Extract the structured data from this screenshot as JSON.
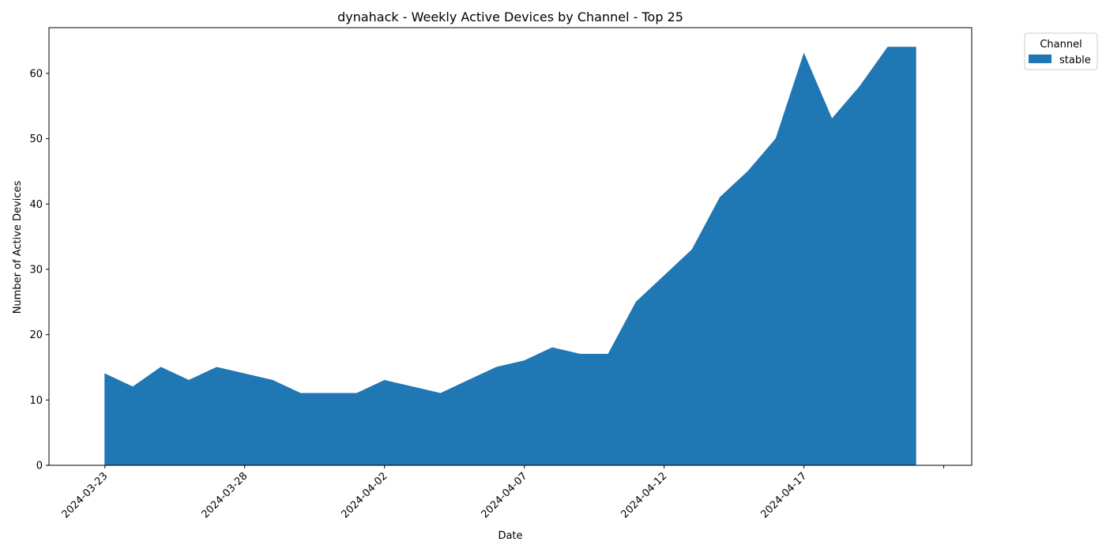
{
  "chart_data": {
    "type": "area",
    "title": "dynahack - Weekly Active Devices by Channel - Top 25",
    "xlabel": "Date",
    "ylabel": "Number of Active Devices",
    "x": [
      "2024-03-23",
      "2024-03-24",
      "2024-03-25",
      "2024-03-26",
      "2024-03-27",
      "2024-03-28",
      "2024-03-29",
      "2024-03-30",
      "2024-03-31",
      "2024-04-01",
      "2024-04-02",
      "2024-04-03",
      "2024-04-04",
      "2024-04-05",
      "2024-04-06",
      "2024-04-07",
      "2024-04-08",
      "2024-04-09",
      "2024-04-10",
      "2024-04-11",
      "2024-04-12",
      "2024-04-13",
      "2024-04-14",
      "2024-04-15",
      "2024-04-16",
      "2024-04-17",
      "2024-04-18",
      "2024-04-19",
      "2024-04-20",
      "2024-04-21"
    ],
    "series": [
      {
        "name": "stable",
        "color": "#1f77b4",
        "values": [
          14,
          12,
          15,
          13,
          15,
          14,
          13,
          11,
          11,
          11,
          13,
          12,
          11,
          13,
          15,
          16,
          18,
          17,
          17,
          25,
          29,
          33,
          41,
          45,
          50,
          63,
          53,
          58,
          64,
          64
        ]
      }
    ],
    "xticks": [
      "2024-03-23",
      "2024-03-28",
      "2024-04-02",
      "2024-04-07",
      "2024-04-12",
      "2024-04-17"
    ],
    "yticks": [
      0,
      10,
      20,
      30,
      40,
      50,
      60
    ],
    "xlim": [
      "2024-03-21",
      "2024-04-23"
    ],
    "ylim": [
      0,
      67
    ],
    "legend": {
      "title": "Channel",
      "placement": "outside-top-right"
    },
    "grid": false
  }
}
